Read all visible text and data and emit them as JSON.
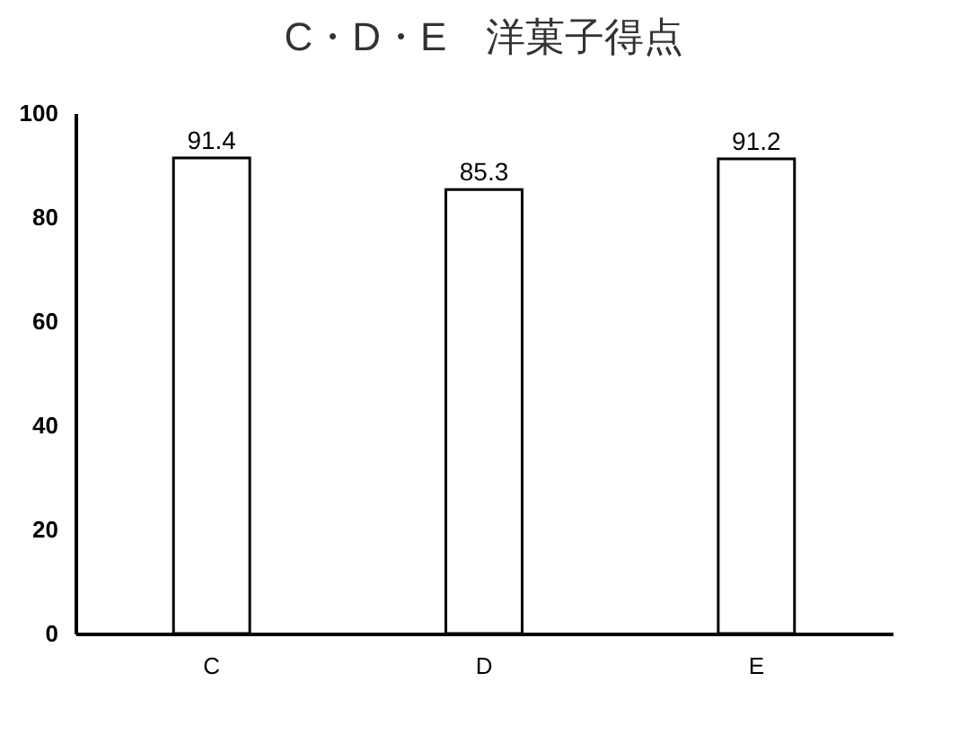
{
  "chart_data": {
    "type": "bar",
    "title": "C・D・E　洋菓子得点",
    "categories": [
      "C",
      "D",
      "E"
    ],
    "values": [
      91.4,
      85.3,
      91.2
    ],
    "color": "#ffffff",
    "ylim": [
      0,
      100
    ],
    "yticks": [
      0,
      20,
      40,
      60,
      80,
      100
    ],
    "grid": false,
    "data_labels": true
  }
}
